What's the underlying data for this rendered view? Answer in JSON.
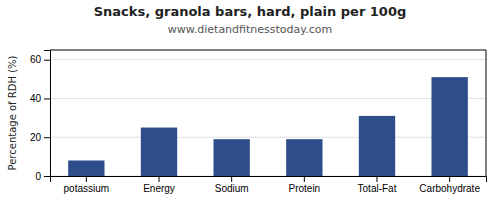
{
  "chart_data": {
    "type": "bar",
    "title": "Snacks, granola bars, hard, plain per 100g",
    "subtitle": "www.dietandfitnesstoday.com",
    "categories": [
      "potassium",
      "Energy",
      "Sodium",
      "Protein",
      "Total-Fat",
      "Carbohydrate"
    ],
    "values": [
      8,
      25,
      19,
      19,
      31,
      51
    ],
    "color": "#2d4e8a",
    "ylabel": "Percentage of RDH (%)",
    "ylim": [
      0,
      65
    ],
    "yticks": [
      0,
      20,
      40,
      60
    ],
    "grid": true
  }
}
